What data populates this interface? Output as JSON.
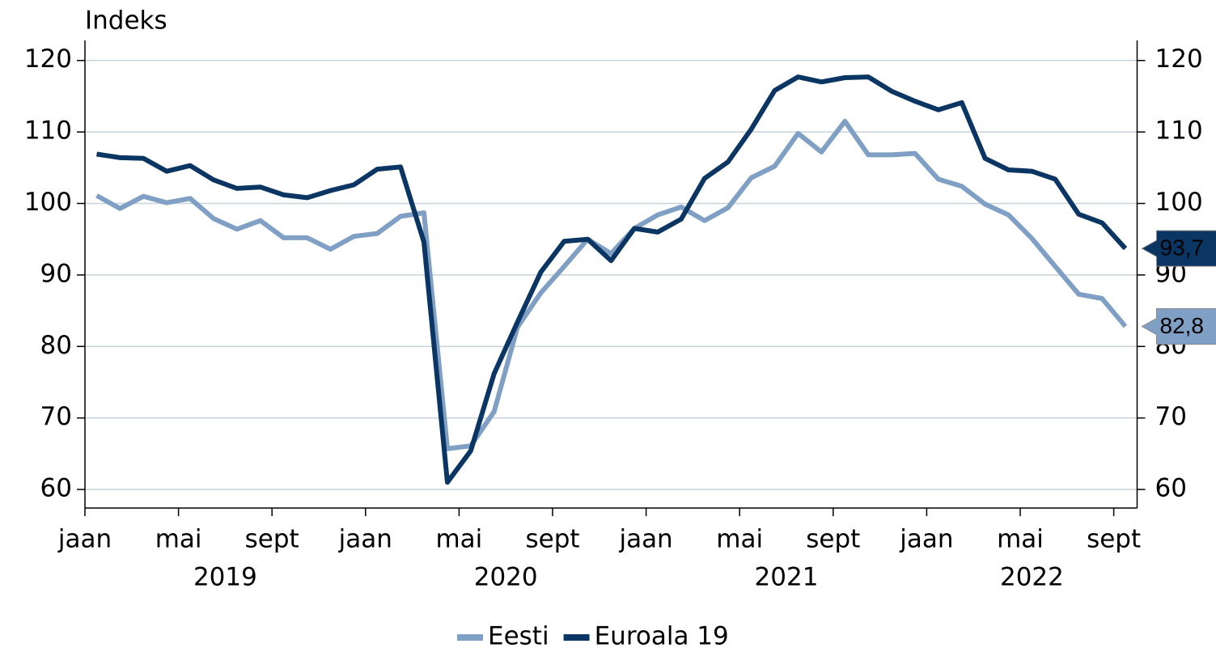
{
  "chart_data": {
    "type": "line",
    "title": "Indeks",
    "categories": [
      "jaan",
      null,
      null,
      null,
      "mai",
      null,
      null,
      null,
      "sept",
      null,
      null,
      null,
      "jaan",
      null,
      null,
      null,
      "mai",
      null,
      null,
      null,
      "sept",
      null,
      null,
      null,
      "jaan",
      null,
      null,
      null,
      "mai",
      null,
      null,
      null,
      "sept",
      null,
      null,
      null,
      "jaan",
      null,
      null,
      null,
      "mai",
      null,
      null,
      null,
      "sept"
    ],
    "year_labels": [
      "2019",
      "2020",
      "2021",
      "2022"
    ],
    "series": [
      {
        "name": "Eesti",
        "color": "#7f9fc4",
        "values": [
          101.1,
          99.3,
          101.0,
          100.1,
          100.7,
          97.9,
          96.4,
          97.6,
          95.2,
          95.2,
          93.6,
          95.4,
          95.8,
          98.2,
          98.7,
          65.7,
          66.1,
          70.9,
          82.7,
          87.5,
          91.2,
          95.0,
          93.0,
          96.5,
          98.4,
          99.5,
          97.6,
          99.4,
          103.6,
          105.2,
          109.8,
          107.2,
          111.5,
          106.8,
          106.8,
          107.0,
          103.4,
          102.4,
          99.9,
          98.4,
          95.1,
          91.2,
          87.3,
          86.7,
          82.8
        ],
        "value_labels": [
          null,
          null,
          null,
          null,
          null,
          null,
          null,
          null,
          null,
          null,
          null,
          null,
          null,
          null,
          null,
          null,
          null,
          null,
          null,
          null,
          null,
          null,
          null,
          null,
          null,
          null,
          null,
          null,
          null,
          null,
          null,
          null,
          null,
          null,
          null,
          null,
          null,
          null,
          null,
          null,
          null,
          null,
          null,
          null,
          "82,8"
        ]
      },
      {
        "name": "Euroala 19",
        "color": "#0b3563",
        "values": [
          106.9,
          106.4,
          106.3,
          104.5,
          105.3,
          103.3,
          102.1,
          102.3,
          101.2,
          100.8,
          101.8,
          102.6,
          104.8,
          105.1,
          94.6,
          61.0,
          65.4,
          76.2,
          83.4,
          90.4,
          94.7,
          95.0,
          92.0,
          96.5,
          96.0,
          97.8,
          103.5,
          105.8,
          110.4,
          115.8,
          117.7,
          117.0,
          117.6,
          117.7,
          115.7,
          114.3,
          113.1,
          114.1,
          106.3,
          104.7,
          104.5,
          103.4,
          98.5,
          97.3,
          93.7
        ],
        "value_labels": [
          null,
          null,
          null,
          null,
          null,
          null,
          null,
          null,
          null,
          null,
          null,
          null,
          null,
          null,
          null,
          null,
          null,
          null,
          null,
          null,
          null,
          null,
          null,
          null,
          null,
          null,
          null,
          null,
          null,
          null,
          null,
          null,
          null,
          null,
          null,
          null,
          null,
          null,
          null,
          null,
          null,
          null,
          null,
          null,
          "93,7"
        ]
      }
    ],
    "ylim": [
      57.4,
      122.8
    ],
    "yticks": [
      60,
      70,
      80,
      90,
      100,
      110,
      120
    ],
    "grid": true,
    "right_axis": true,
    "legend": "bottom"
  }
}
